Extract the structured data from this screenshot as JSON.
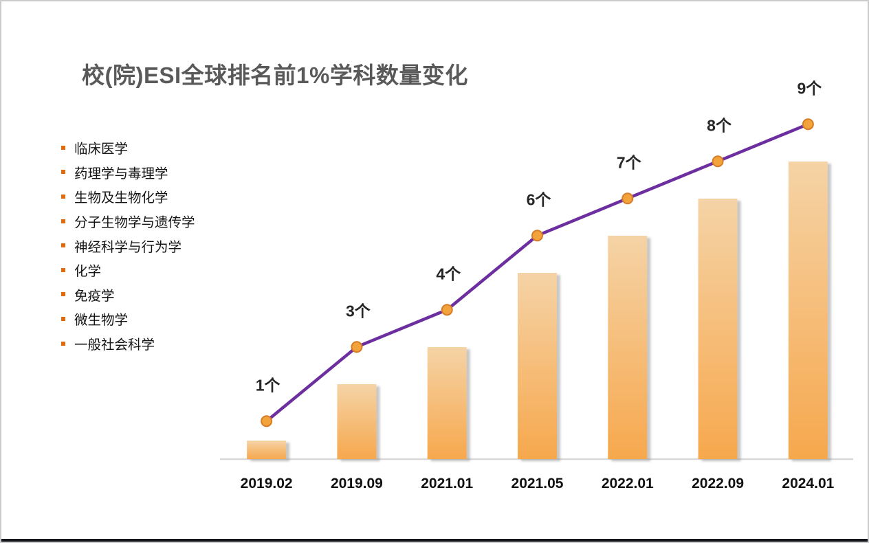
{
  "page": {
    "title": "校(院)ESI全球排名前1%学科数量变化"
  },
  "disciplines": {
    "bullet_color": "#e5690b",
    "items": [
      "临床医学",
      "药理学与毒理学",
      "生物及生物化学",
      "分子生物学与遗传学",
      "神经科学与行为学",
      "化学",
      "免疫学",
      "微生物学",
      "一般社会科学"
    ]
  },
  "chart_data": {
    "type": "bar",
    "subtype": "bar-with-line-overlay",
    "title": "校(院)ESI全球排名前1%学科数量变化",
    "categories": [
      "2019.02",
      "2019.09",
      "2021.01",
      "2021.05",
      "2022.01",
      "2022.09",
      "2024.01"
    ],
    "values": [
      1,
      3,
      4,
      6,
      7,
      8,
      9
    ],
    "value_labels": [
      "1个",
      "3个",
      "4个",
      "6个",
      "7个",
      "8个",
      "9个"
    ],
    "unit_suffix": "个",
    "xlabel": "",
    "ylabel": "",
    "ylim": [
      0,
      10
    ],
    "grid": false,
    "legend": false,
    "colors": {
      "bar_gradient_top": "#f5d3a6",
      "bar_gradient_bottom": "#f6a84d",
      "line": "#6d2f9f",
      "marker_fill": "#f2a33c",
      "marker_stroke": "#d77d28",
      "axis_line": "#d8d8d8",
      "value_label": "#262626",
      "category_label": "#111111",
      "title": "#595959"
    }
  }
}
